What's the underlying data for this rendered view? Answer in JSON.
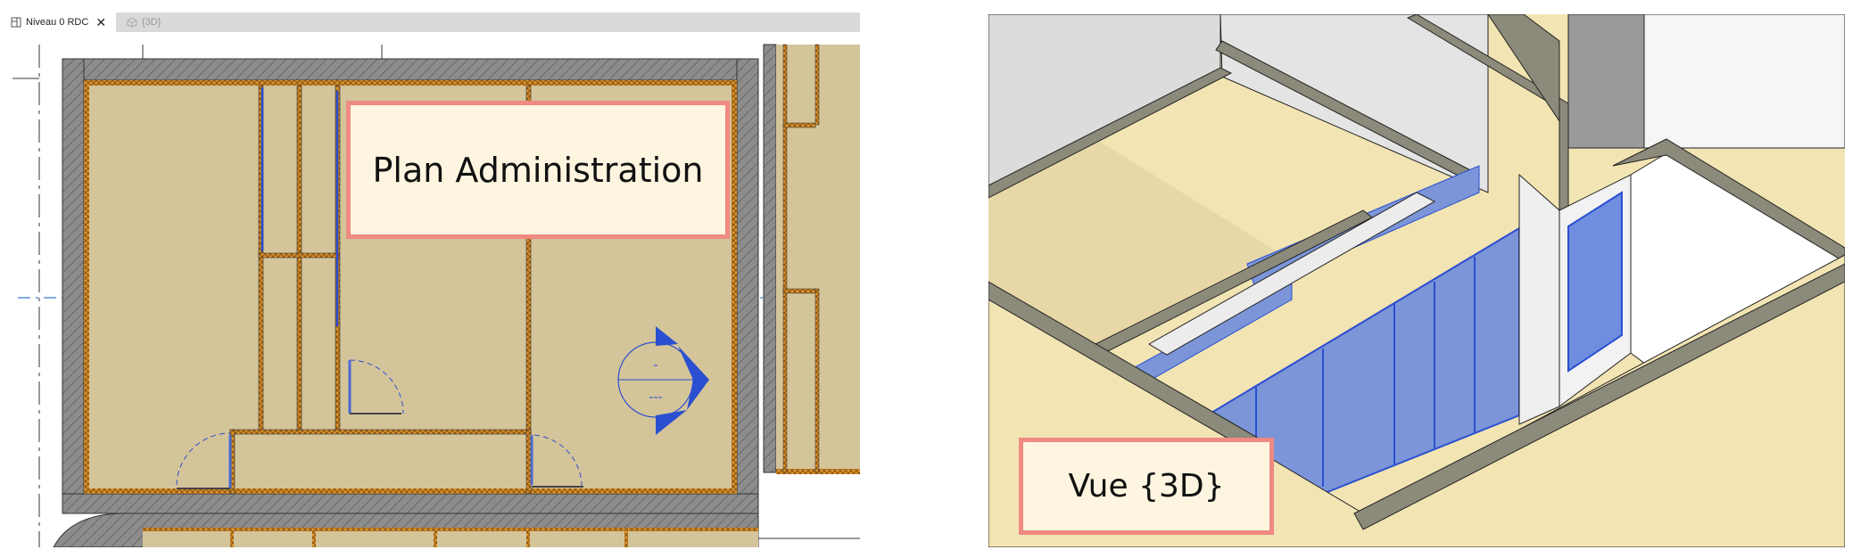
{
  "tabs": [
    {
      "label": "Niveau 0 RDC",
      "active": true,
      "closable": true,
      "icon": "floor-plan-icon"
    },
    {
      "label": "{3D}",
      "active": false,
      "icon": "3d-view-icon"
    }
  ],
  "tab_close_glyph": "✕",
  "plan_view": {
    "label": "Plan Administration"
  },
  "view_3d": {
    "label": "Vue {3D}"
  },
  "section_marker": {
    "top_text": "-",
    "bottom_text": "---"
  },
  "colors": {
    "floor_fill": "#d4c49a",
    "wall_gray": "#8c8c8c",
    "insulation_orange": "#d9902a",
    "selected_blue": "#2a4fd0",
    "label_border": "#f08a82",
    "label_fill": "#fdf5df"
  }
}
